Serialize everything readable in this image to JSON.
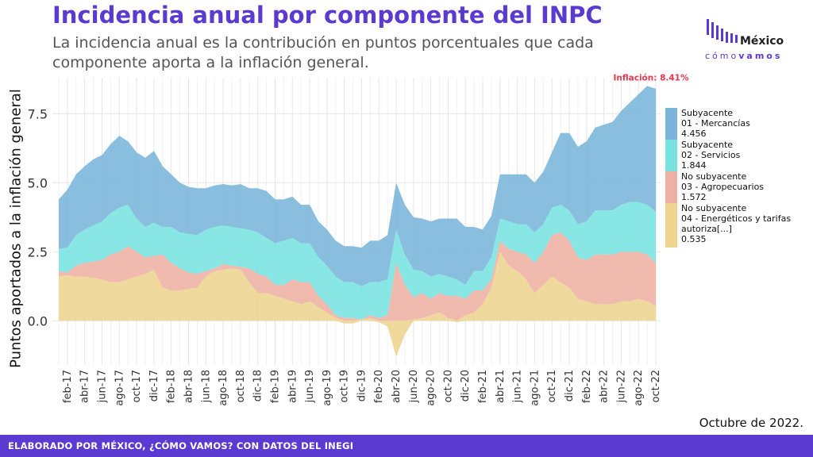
{
  "header": {
    "title": "Incidencia anual por componente del INPC",
    "subtitle": "La incidencia anual es la contribución en puntos porcentuales que cada componente aporta a la inflación general."
  },
  "logo": {
    "main": "México",
    "sub_light": "cómo",
    "sub_bold": "vamos"
  },
  "date_note": "Octubre de 2022.",
  "footer": {
    "text": "ELABORADO POR MÉXICO, ¿CÓMO VAMOS? CON DATOS DEL INEGI"
  },
  "colors": {
    "title": "#5a3ad1",
    "mercancias": "#7ab5da",
    "servicios": "#78e2e0",
    "agropecuarios": "#efb0a4",
    "energeticos": "#eed48e",
    "annotation": "#e8384f"
  },
  "chart_data": {
    "type": "area",
    "stacked": true,
    "ylabel": "Puntos aportados a la inflación general",
    "yticks": [
      0.0,
      2.5,
      5.0,
      7.5
    ],
    "ylim": [
      -1.6,
      8.8
    ],
    "grid": true,
    "legend_position": "right",
    "x_tick_labels": [
      "feb-17",
      "abr-17",
      "jun-17",
      "ago-17",
      "oct-17",
      "dic-17",
      "feb-18",
      "abr-18",
      "jun-18",
      "ago-18",
      "oct-18",
      "dic-18",
      "feb-19",
      "abr-19",
      "jun-19",
      "ago-19",
      "oct-19",
      "dic-19",
      "feb-20",
      "abr-20",
      "jun-20",
      "ago-20",
      "oct-20",
      "dic-20",
      "feb-21",
      "abr-21",
      "jun-21",
      "ago-21",
      "oct-21",
      "dic-21",
      "feb-22",
      "abr-22",
      "jun-22",
      "ago-22",
      "oct-22"
    ],
    "x": [
      "ene-17",
      "feb-17",
      "mar-17",
      "abr-17",
      "may-17",
      "jun-17",
      "jul-17",
      "ago-17",
      "sep-17",
      "oct-17",
      "nov-17",
      "dic-17",
      "ene-18",
      "feb-18",
      "mar-18",
      "abr-18",
      "may-18",
      "jun-18",
      "jul-18",
      "ago-18",
      "sep-18",
      "oct-18",
      "nov-18",
      "dic-18",
      "ene-19",
      "feb-19",
      "mar-19",
      "abr-19",
      "may-19",
      "jun-19",
      "jul-19",
      "ago-19",
      "sep-19",
      "oct-19",
      "nov-19",
      "dic-19",
      "ene-20",
      "feb-20",
      "mar-20",
      "abr-20",
      "may-20",
      "jun-20",
      "jul-20",
      "ago-20",
      "sep-20",
      "oct-20",
      "nov-20",
      "dic-20",
      "ene-21",
      "feb-21",
      "mar-21",
      "abr-21",
      "may-21",
      "jun-21",
      "jul-21",
      "ago-21",
      "sep-21",
      "oct-21",
      "nov-21",
      "dic-21",
      "ene-22",
      "feb-22",
      "mar-22",
      "abr-22",
      "may-22",
      "jun-22",
      "jul-22",
      "ago-22",
      "sep-22",
      "oct-22"
    ],
    "series": [
      {
        "name": "No subyacente 04 - Energéticos y tarifas autoriza[...]",
        "label_lines": [
          "No subyacente",
          "04 - Energéticos y tarifas",
          "autoriza[...]",
          "0.535"
        ],
        "values": [
          1.6,
          1.65,
          1.6,
          1.6,
          1.55,
          1.5,
          1.4,
          1.4,
          1.5,
          1.6,
          1.7,
          1.85,
          1.2,
          1.1,
          1.1,
          1.15,
          1.2,
          1.6,
          1.8,
          1.85,
          1.9,
          1.85,
          1.4,
          1.0,
          1.0,
          0.9,
          0.8,
          0.7,
          0.6,
          0.7,
          0.5,
          0.3,
          0.1,
          -0.1,
          -0.1,
          0.05,
          0.1,
          -0.05,
          -0.2,
          -1.3,
          -0.5,
          0.05,
          0.1,
          0.2,
          0.3,
          0.1,
          -0.05,
          0.2,
          0.3,
          0.6,
          1.2,
          2.5,
          2.0,
          1.8,
          1.5,
          1.0,
          1.3,
          1.6,
          1.4,
          1.2,
          0.8,
          0.7,
          0.6,
          0.6,
          0.6,
          0.7,
          0.7,
          0.8,
          0.7,
          0.535
        ]
      },
      {
        "name": "No subyacente 03 - Agropecuarios",
        "label_lines": [
          "No subyacente",
          "03 - Agropecuarios",
          "1.572"
        ],
        "values": [
          0.2,
          0.1,
          0.4,
          0.5,
          0.6,
          0.7,
          1.0,
          1.1,
          1.2,
          0.9,
          0.6,
          0.5,
          1.2,
          1.0,
          0.8,
          0.6,
          0.5,
          0.2,
          0.1,
          0.2,
          0.1,
          0.1,
          0.5,
          0.7,
          0.6,
          0.4,
          0.5,
          0.8,
          0.8,
          0.7,
          0.4,
          0.3,
          0.1,
          0.1,
          0.1,
          0.0,
          0.1,
          0.1,
          0.2,
          2.1,
          1.3,
          0.8,
          0.9,
          0.6,
          0.7,
          0.8,
          0.9,
          0.6,
          0.8,
          0.5,
          0.3,
          0.4,
          0.6,
          0.7,
          0.9,
          1.1,
          1.2,
          1.5,
          1.8,
          1.7,
          1.5,
          1.5,
          1.8,
          1.8,
          1.8,
          1.8,
          1.8,
          1.7,
          1.7,
          1.572
        ]
      },
      {
        "name": "Subyacente 02 - Servicios",
        "label_lines": [
          "Subyacente",
          "02 - Servicios",
          "1.844"
        ],
        "values": [
          0.8,
          0.9,
          1.1,
          1.2,
          1.3,
          1.4,
          1.5,
          1.6,
          1.5,
          1.2,
          1.1,
          1.2,
          1.0,
          1.3,
          1.3,
          1.4,
          1.4,
          1.5,
          1.5,
          1.4,
          1.4,
          1.4,
          1.4,
          1.5,
          1.4,
          1.5,
          1.6,
          1.5,
          1.4,
          1.4,
          1.4,
          1.4,
          1.4,
          1.3,
          1.3,
          1.2,
          1.2,
          1.3,
          1.3,
          1.2,
          1.1,
          1.0,
          0.8,
          0.8,
          0.7,
          0.7,
          0.6,
          0.5,
          0.7,
          0.7,
          0.8,
          0.8,
          1.0,
          1.0,
          1.1,
          1.1,
          1.0,
          1.0,
          1.0,
          1.1,
          1.2,
          1.4,
          1.6,
          1.6,
          1.6,
          1.7,
          1.8,
          1.8,
          1.8,
          1.844
        ]
      },
      {
        "name": "Subyacente 01 - Mercancías",
        "label_lines": [
          "Subyacente",
          "01 - Mercancías",
          "4.456"
        ],
        "values": [
          1.8,
          2.1,
          2.2,
          2.3,
          2.4,
          2.4,
          2.5,
          2.6,
          2.3,
          2.4,
          2.5,
          2.6,
          2.2,
          1.9,
          1.8,
          1.7,
          1.7,
          1.5,
          1.5,
          1.5,
          1.5,
          1.6,
          1.5,
          1.6,
          1.7,
          1.6,
          1.5,
          1.5,
          1.4,
          1.4,
          1.3,
          1.3,
          1.3,
          1.3,
          1.3,
          1.4,
          1.5,
          1.5,
          1.6,
          1.7,
          1.8,
          1.9,
          1.9,
          2.0,
          2.0,
          2.1,
          2.2,
          2.1,
          1.6,
          1.5,
          1.5,
          1.6,
          1.7,
          1.8,
          1.8,
          1.8,
          1.9,
          2.0,
          2.6,
          2.8,
          2.8,
          2.9,
          3.0,
          3.1,
          3.2,
          3.4,
          3.6,
          3.9,
          4.3,
          4.456
        ]
      }
    ],
    "annotation": {
      "text": "Inflación: 8.41%",
      "x": "oct-22",
      "y": 8.41
    }
  }
}
